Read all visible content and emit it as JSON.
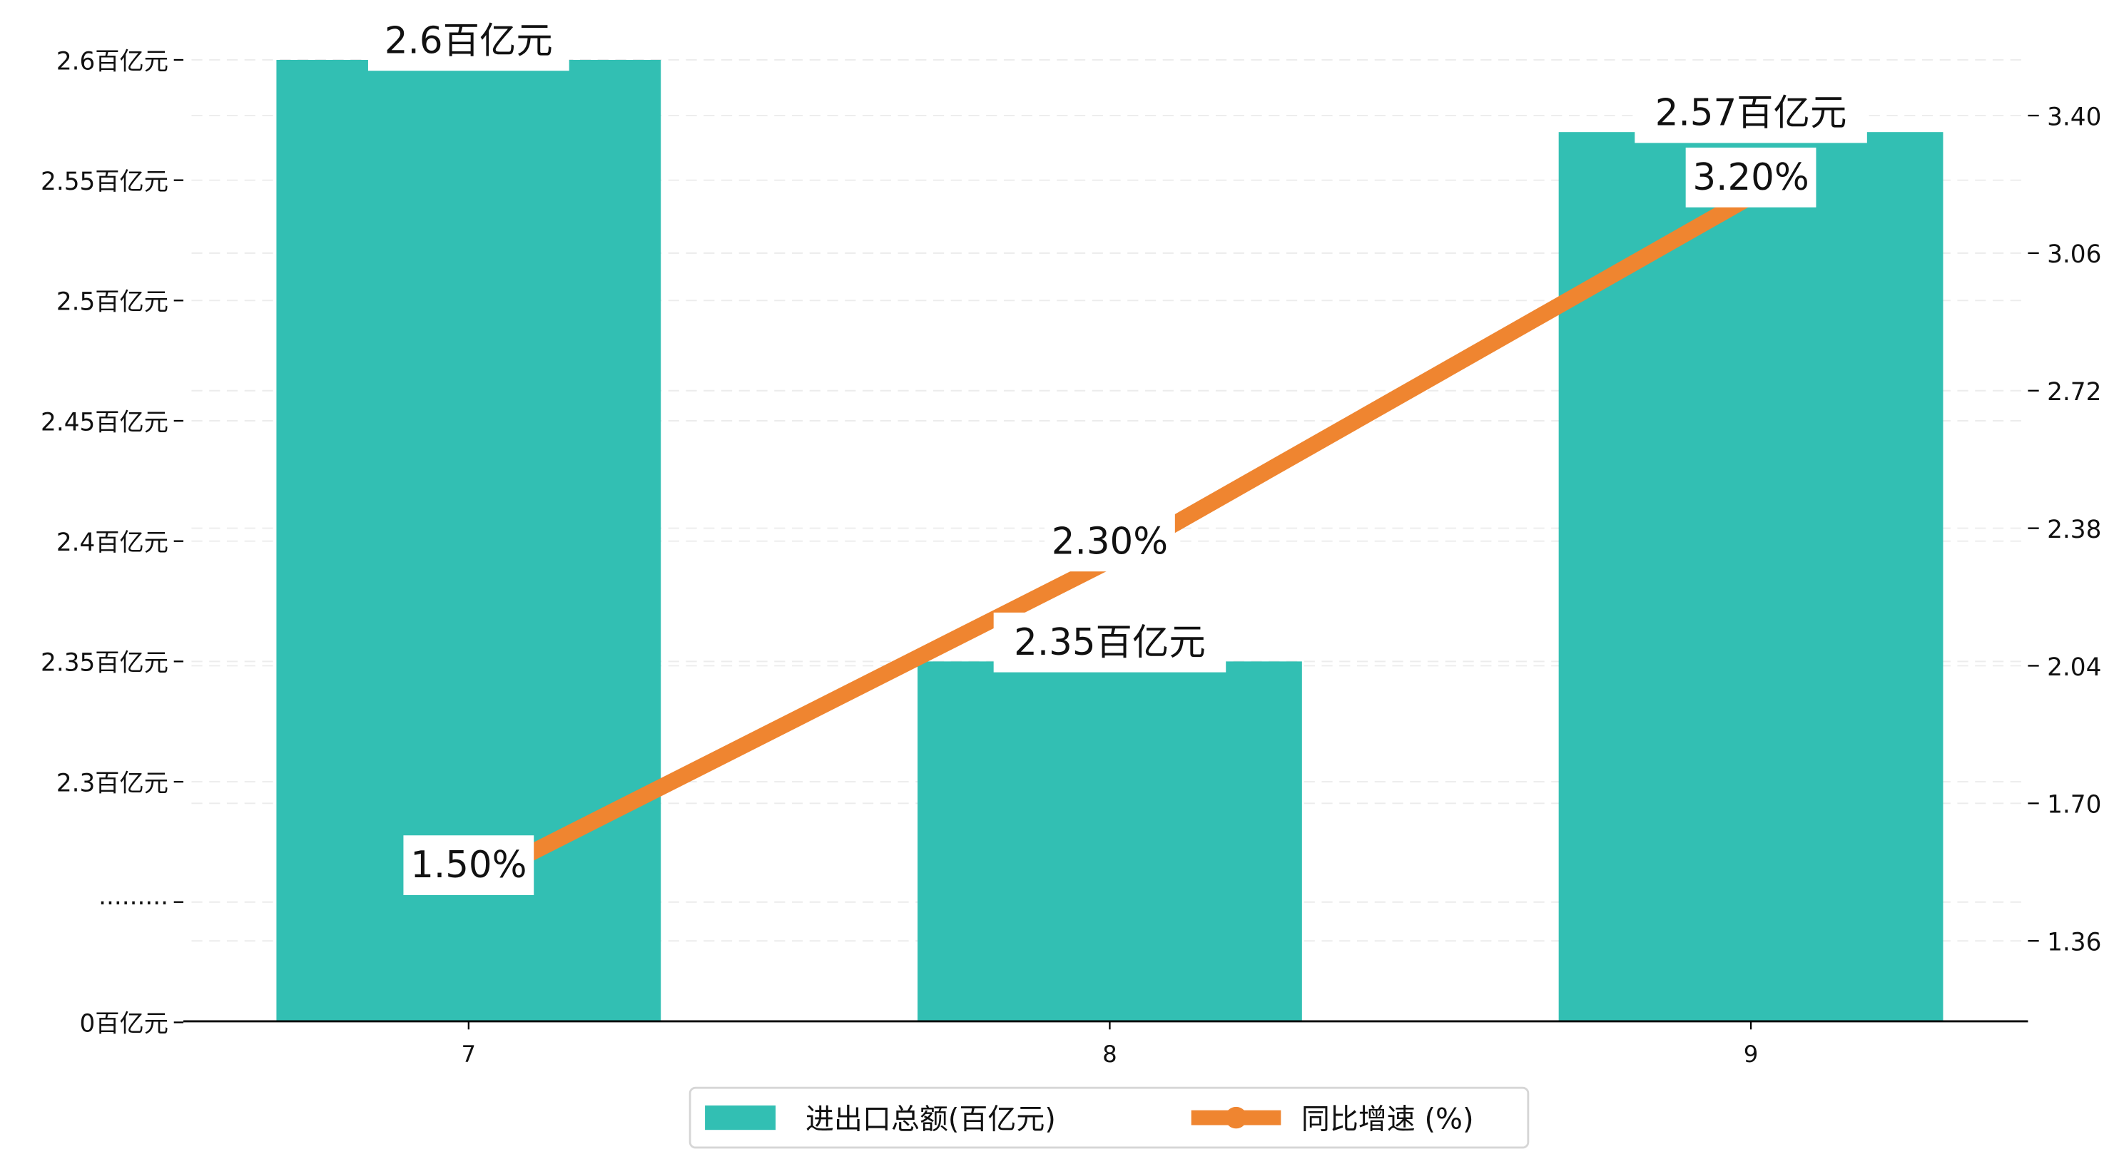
{
  "chart_data": {
    "type": "bar+line",
    "categories": [
      "7",
      "8",
      "9"
    ],
    "series": [
      {
        "name": "进出口总额(百亿元)",
        "type": "bar",
        "axis": "left",
        "values": [
          2.6,
          2.35,
          2.57
        ],
        "labels": [
          "2.6百亿元",
          "2.35百亿元",
          "2.57百亿元"
        ],
        "color": "#32bfb3"
      },
      {
        "name": "同比增速 (%)",
        "type": "line",
        "axis": "right",
        "values": [
          1.5,
          2.3,
          3.2
        ],
        "labels": [
          "1.50%",
          "2.30%",
          "3.20%"
        ],
        "color": "#ef8530"
      }
    ],
    "left_axis": {
      "ticks": [
        {
          "label": "2.6百亿元",
          "value": 2.6
        },
        {
          "label": "2.55百亿元",
          "value": 2.55
        },
        {
          "label": "2.5百亿元",
          "value": 2.5
        },
        {
          "label": "2.45百亿元",
          "value": 2.45
        },
        {
          "label": "2.4百亿元",
          "value": 2.4
        },
        {
          "label": "2.35百亿元",
          "value": 2.35
        },
        {
          "label": "2.3百亿元",
          "value": 2.3
        },
        {
          "label": "·········",
          "value": null
        },
        {
          "label": "0百亿元",
          "value": 0
        }
      ],
      "broken": true
    },
    "right_axis": {
      "ticks": [
        "3.40",
        "3.06",
        "2.72",
        "2.38",
        "2.04",
        "1.70",
        "1.36"
      ],
      "ylim": [
        1.16,
        3.66
      ]
    },
    "grid": true,
    "legend_position": "bottom-center",
    "title": "",
    "xlabel": "",
    "ylabel": ""
  }
}
